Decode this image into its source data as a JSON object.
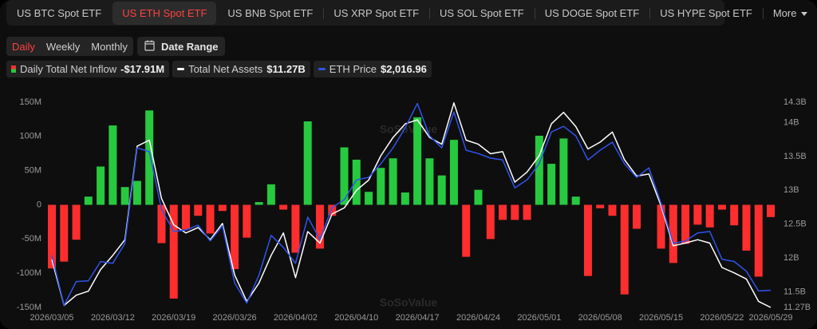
{
  "tabs": [
    "US BTC Spot ETF",
    "US ETH Spot ETF",
    "US BNB Spot ETF",
    "US XRP Spot ETF",
    "US SOL Spot ETF",
    "US DOGE Spot ETF",
    "US HYPE Spot ETF",
    "More"
  ],
  "active_tab": 1,
  "periods": [
    "Daily",
    "Weekly",
    "Monthly"
  ],
  "active_period": 0,
  "date_range": "Date Range",
  "chart_data": {
    "type": "bar-line",
    "watermark": "SoSoValue",
    "categories": [
      "2026/03/05",
      null,
      null,
      null,
      null,
      "2026/03/12",
      null,
      null,
      null,
      null,
      "2026/03/19",
      null,
      null,
      null,
      null,
      "2026/03/26",
      null,
      null,
      null,
      null,
      "2026/04/02",
      null,
      null,
      null,
      null,
      "2026/04/10",
      null,
      null,
      null,
      null,
      "2026/04/17",
      null,
      null,
      null,
      null,
      "2026/04/24",
      null,
      null,
      null,
      null,
      "2026/05/01",
      null,
      null,
      null,
      null,
      "2026/05/08",
      null,
      null,
      null,
      null,
      "2026/05/15",
      null,
      null,
      null,
      null,
      "2026/05/22",
      null,
      null,
      null,
      "2026/05/29"
    ],
    "series": [
      {
        "name": "Daily Total Net Inflow",
        "type": "bar",
        "positive_color": "#27c93f",
        "negative_color": "#ff2e2e",
        "current_label": "-$17.91M",
        "values": [
          -93,
          -83,
          -51,
          12,
          56,
          116,
          26,
          35,
          138,
          -56,
          -137,
          -36,
          -16,
          -42,
          -9,
          -94,
          -48,
          4,
          30,
          -7,
          -70,
          122,
          -64,
          -16,
          84,
          66,
          19,
          54,
          68,
          18,
          128,
          68,
          43,
          95,
          -76,
          22,
          -50,
          -22,
          -22,
          -22,
          101,
          60,
          97,
          12,
          -104,
          -5,
          -16,
          -131,
          -35,
          0,
          -64,
          -85,
          -57,
          -29,
          -33,
          -7,
          -30,
          -67,
          -105,
          -17.91
        ]
      },
      {
        "name": "Total Net Assets",
        "type": "line",
        "axis": "y2",
        "color": "#ffffff",
        "current_label": "$11.27B",
        "values": [
          11.98,
          11.3,
          11.45,
          11.51,
          11.83,
          12.04,
          12.27,
          13.65,
          13.74,
          12.88,
          12.49,
          12.37,
          12.45,
          12.27,
          12.51,
          11.75,
          11.36,
          11.63,
          12.04,
          12.37,
          11.71,
          12.39,
          12.22,
          12.65,
          12.74,
          13.0,
          13.15,
          13.51,
          13.78,
          13.98,
          14.04,
          13.78,
          13.68,
          14.29,
          13.74,
          13.68,
          13.54,
          13.57,
          13.12,
          13.27,
          13.51,
          13.98,
          14.15,
          13.94,
          13.61,
          13.71,
          13.86,
          13.45,
          13.21,
          13.24,
          12.77,
          12.18,
          12.22,
          12.27,
          12.22,
          11.86,
          11.78,
          11.69,
          11.36,
          11.27
        ]
      },
      {
        "name": "ETH Price",
        "type": "line",
        "axis": "y3",
        "color": "#2f54eb",
        "current_label": "$2,016.96",
        "values": [
          2153,
          1958,
          2051,
          2054,
          2129,
          2122,
          2200,
          2572,
          2557,
          2333,
          2246,
          2252,
          2271,
          2209,
          2268,
          2045,
          1967,
          2076,
          2231,
          2184,
          2122,
          2302,
          2215,
          2339,
          2370,
          2447,
          2457,
          2510,
          2572,
          2650,
          2745,
          2619,
          2572,
          2712,
          2563,
          2550,
          2532,
          2525,
          2416,
          2447,
          2510,
          2634,
          2656,
          2619,
          2525,
          2563,
          2594,
          2510,
          2457,
          2494,
          2355,
          2200,
          2209,
          2240,
          2246,
          2138,
          2129,
          2091,
          2014,
          2016.96
        ]
      }
    ],
    "ylim": [
      -150,
      150
    ],
    "yticks": [
      {
        "value": 150,
        "label": "150M"
      },
      {
        "value": 100,
        "label": "100M"
      },
      {
        "value": 50,
        "label": "50M"
      },
      0,
      {
        "value": -50,
        "label": "-50M"
      },
      {
        "value": -100,
        "label": "-100M"
      },
      {
        "value": -150,
        "label": "-150M"
      }
    ],
    "y2lim": [
      11.27,
      14.3
    ],
    "y2ticks": [
      {
        "value": 14.3,
        "label": "14.3B"
      },
      {
        "value": 14,
        "label": "14B"
      },
      {
        "value": 13.5,
        "label": "13.5B"
      },
      {
        "value": 13,
        "label": "13B"
      },
      {
        "value": 12.5,
        "label": "12.5B"
      },
      {
        "value": 12,
        "label": "12B"
      },
      {
        "value": 11.5,
        "label": "11.5B"
      },
      {
        "value": 11.27,
        "label": "11.27B"
      }
    ],
    "y3lim": [
      1950,
      2750
    ],
    "grid": false
  }
}
